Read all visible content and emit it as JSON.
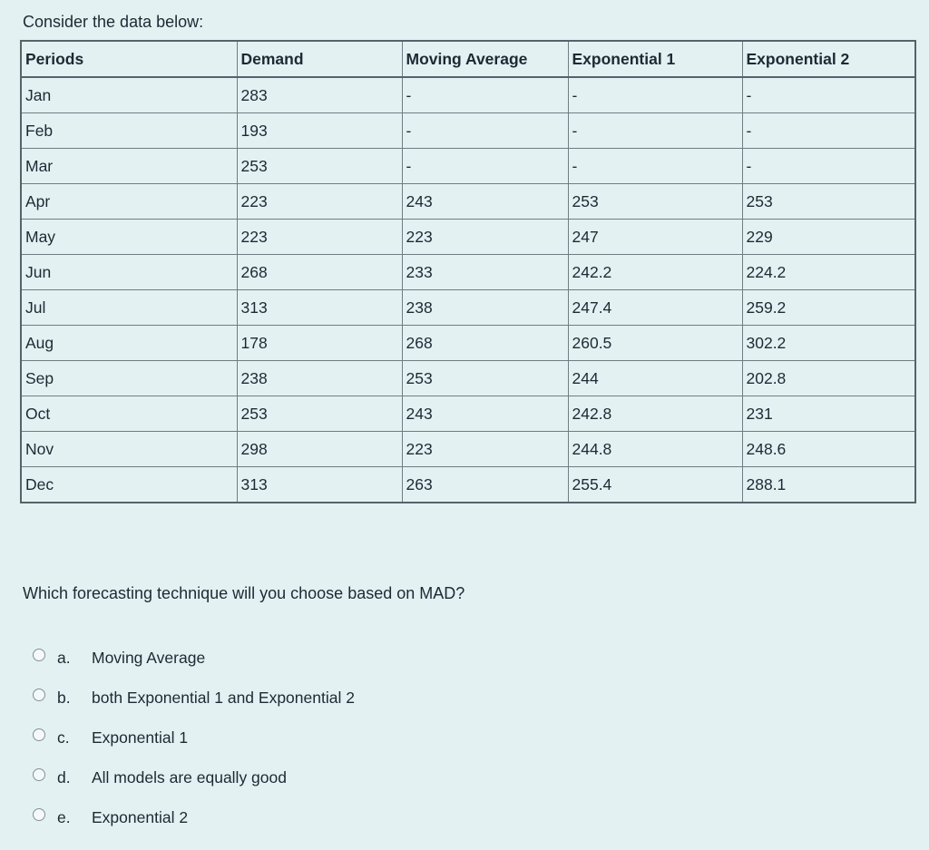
{
  "intro": "Consider the data below:",
  "table": {
    "headers": [
      "Periods",
      "Demand",
      "Moving Average",
      "Exponential 1",
      "Exponential 2"
    ],
    "rows": [
      [
        "Jan",
        "283",
        "-",
        "-",
        "-"
      ],
      [
        "Feb",
        "193",
        "-",
        "-",
        "-"
      ],
      [
        "Mar",
        "253",
        "-",
        "-",
        "-"
      ],
      [
        "Apr",
        "223",
        "243",
        "253",
        "253"
      ],
      [
        "May",
        "223",
        "223",
        "247",
        "229"
      ],
      [
        "Jun",
        "268",
        "233",
        "242.2",
        "224.2"
      ],
      [
        "Jul",
        "313",
        "238",
        "247.4",
        "259.2"
      ],
      [
        "Aug",
        "178",
        "268",
        "260.5",
        "302.2"
      ],
      [
        "Sep",
        "238",
        "253",
        "244",
        "202.8"
      ],
      [
        "Oct",
        "253",
        "243",
        "242.8",
        "231"
      ],
      [
        "Nov",
        "298",
        "223",
        "244.8",
        "248.6"
      ],
      [
        "Dec",
        "313",
        "263",
        "255.4",
        "288.1"
      ]
    ]
  },
  "question": "Which forecasting technique will you choose based on MAD?",
  "options": [
    {
      "letter": "a.",
      "label": "Moving Average",
      "selected": false
    },
    {
      "letter": "b.",
      "label": "both Exponential 1 and Exponential 2",
      "selected": false
    },
    {
      "letter": "c.",
      "label": "Exponential 1",
      "selected": false
    },
    {
      "letter": "d.",
      "label": "All models are equally good",
      "selected": false
    },
    {
      "letter": "e.",
      "label": "Exponential 2",
      "selected": false
    }
  ],
  "colors": {
    "background": "#e4f1f3",
    "text": "#1d2a33",
    "table_border": "#6f7d83",
    "table_outer_border": "#55636a",
    "radio_border": "#859095"
  }
}
